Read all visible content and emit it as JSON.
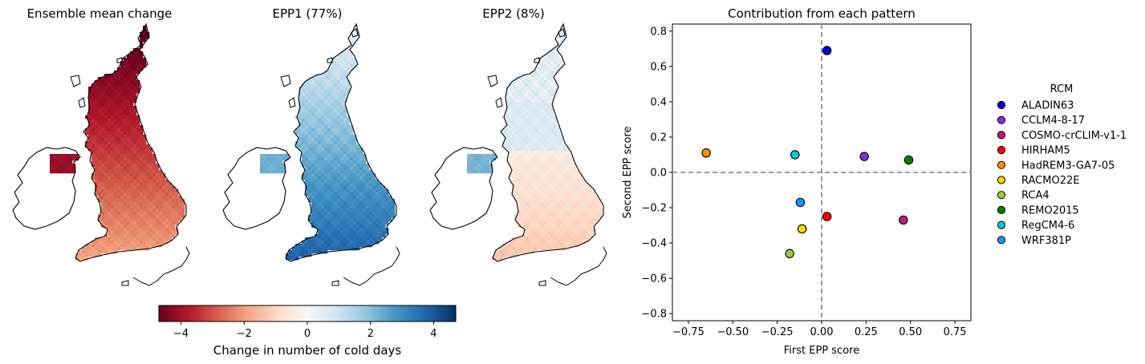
{
  "maps": [
    {
      "title": "Ensemble mean change",
      "pattern": "mean"
    },
    {
      "title": "EPP1 (77%)",
      "pattern": "epp1"
    },
    {
      "title": "EPP2 (8%)",
      "pattern": "epp2"
    }
  ],
  "colorbar": {
    "label": "Change in number of cold days",
    "ticks": [
      -4,
      -2,
      0,
      2,
      4
    ],
    "tick_labels": [
      "−4",
      "−2",
      "0",
      "2",
      "4"
    ],
    "range": [
      -4.7,
      4.7
    ],
    "colormap": "RdBu",
    "colors": [
      "#67001f",
      "#b2182b",
      "#d6604d",
      "#f4a582",
      "#fddbc7",
      "#f7f7f7",
      "#d1e5f0",
      "#92c5de",
      "#4393c3",
      "#2166ac",
      "#053061"
    ]
  },
  "chart_data": [
    {
      "type": "scatter",
      "title": "Contribution from each pattern",
      "xlabel": "First EPP score",
      "ylabel": "Second EPP score",
      "xlim": [
        -0.84,
        0.84
      ],
      "ylim": [
        -0.84,
        0.84
      ],
      "xticks": [
        -0.75,
        -0.5,
        -0.25,
        0.0,
        0.25,
        0.5,
        0.75
      ],
      "xtick_labels": [
        "−0.75",
        "−0.50",
        "−0.25",
        "0.00",
        "0.25",
        "0.50",
        "0.75"
      ],
      "yticks": [
        -0.8,
        -0.6,
        -0.4,
        -0.2,
        0.0,
        0.2,
        0.4,
        0.6,
        0.8
      ],
      "ytick_labels": [
        "−0.8",
        "−0.6",
        "−0.4",
        "−0.2",
        "0.0",
        "0.2",
        "0.4",
        "0.6",
        "0.8"
      ],
      "reference_lines": {
        "x": 0,
        "y": 0,
        "style": "dashed",
        "color": "#808080"
      },
      "grid": false,
      "legend": {
        "title": "RCM",
        "placement": "outside-right"
      },
      "series": [
        {
          "name": "ALADIN63",
          "color": "#0000cd",
          "x": 0.03,
          "y": 0.69
        },
        {
          "name": "CCLM4-8-17",
          "color": "#8a2be2",
          "x": 0.24,
          "y": 0.09
        },
        {
          "name": "COSMO-crCLIM-v1-1",
          "color": "#c71585",
          "x": 0.46,
          "y": -0.27
        },
        {
          "name": "HIRHAM5",
          "color": "#ff0000",
          "x": 0.03,
          "y": -0.25
        },
        {
          "name": "HadREM3-GA7-05",
          "color": "#ff8c00",
          "x": -0.65,
          "y": 0.11
        },
        {
          "name": "RACMO22E",
          "color": "#ffd700",
          "x": -0.11,
          "y": -0.32
        },
        {
          "name": "RCA4",
          "color": "#9acd32",
          "x": -0.18,
          "y": -0.46
        },
        {
          "name": "REMO2015",
          "color": "#008000",
          "x": 0.49,
          "y": 0.07
        },
        {
          "name": "RegCM4-6",
          "color": "#00ced1",
          "x": -0.15,
          "y": 0.1
        },
        {
          "name": "WRF381P",
          "color": "#1e90ff",
          "x": -0.12,
          "y": -0.17
        }
      ]
    }
  ]
}
